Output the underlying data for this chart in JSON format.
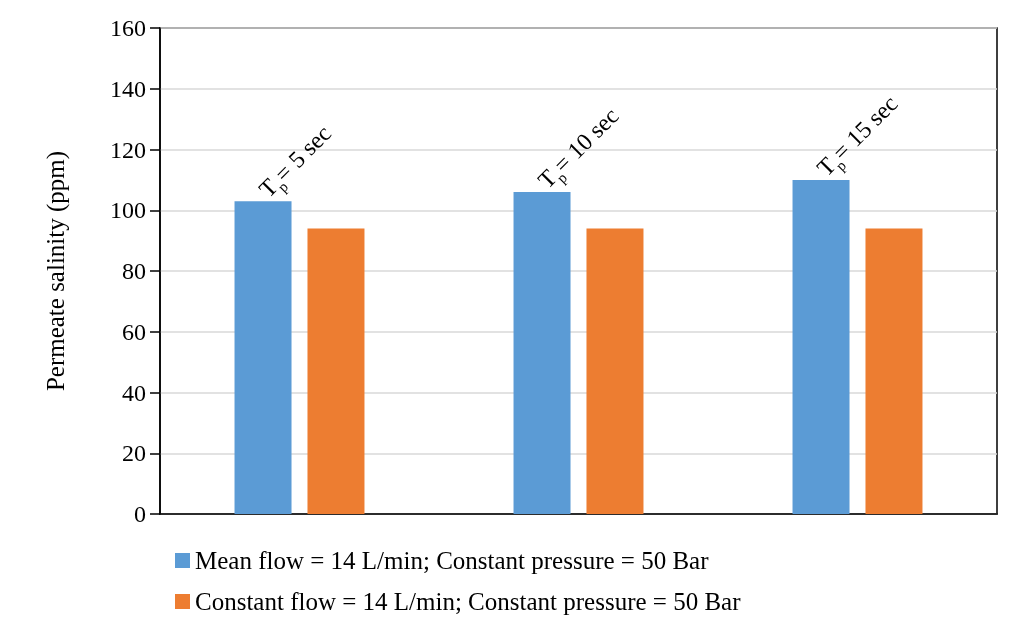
{
  "chart_data": {
    "type": "bar",
    "ylabel": "Permeate salinity (ppm)",
    "categories": [
      null,
      null,
      null
    ],
    "series": [
      {
        "name": "Mean flow = 14 L/min; Constant pressure = 50 Bar",
        "color": "#5b9bd5",
        "values": [
          103,
          106,
          110
        ]
      },
      {
        "name": "Constant flow = 14 L/min; Constant pressure = 50 Bar",
        "color": "#ed7d31",
        "values": [
          94,
          94,
          94
        ]
      }
    ],
    "annotations": [
      "T$_{p}$= 5 sec",
      "T$_{p}$= 10 sec",
      "T$_{p}$= 15 sec"
    ],
    "ylim": [
      0,
      160
    ],
    "yticks": [
      0,
      20,
      40,
      60,
      80,
      100,
      120,
      140,
      160
    ],
    "grid": "y",
    "legend": "bottom"
  }
}
